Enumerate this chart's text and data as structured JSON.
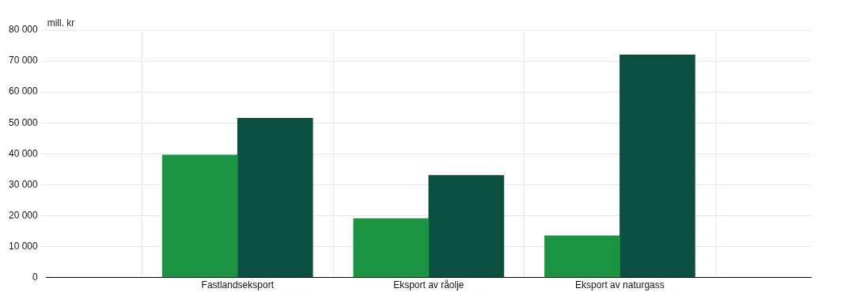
{
  "chart_data": {
    "type": "bar",
    "ylabel": "mill. kr",
    "categories": [
      "Fastlandseksport",
      "Eksport av råolje",
      "Eksport av naturgass"
    ],
    "series": [
      {
        "color": "#1b9441",
        "values": [
          39600,
          19100,
          13500
        ]
      },
      {
        "color": "#0a4f3f",
        "values": [
          51500,
          33000,
          72000
        ]
      }
    ],
    "ylim": [
      0,
      80000
    ],
    "yticks": [
      {
        "value": 0,
        "label": "0"
      },
      {
        "value": 10000,
        "label": "10 000"
      },
      {
        "value": 20000,
        "label": "20 000"
      },
      {
        "value": 30000,
        "label": "30 000"
      },
      {
        "value": 40000,
        "label": "40 000"
      },
      {
        "value": 50000,
        "label": "50 000"
      },
      {
        "value": 60000,
        "label": "60 000"
      },
      {
        "value": 70000,
        "label": "70 000"
      },
      {
        "value": 80000,
        "label": "80 000"
      }
    ],
    "grid": true,
    "legend": false
  }
}
